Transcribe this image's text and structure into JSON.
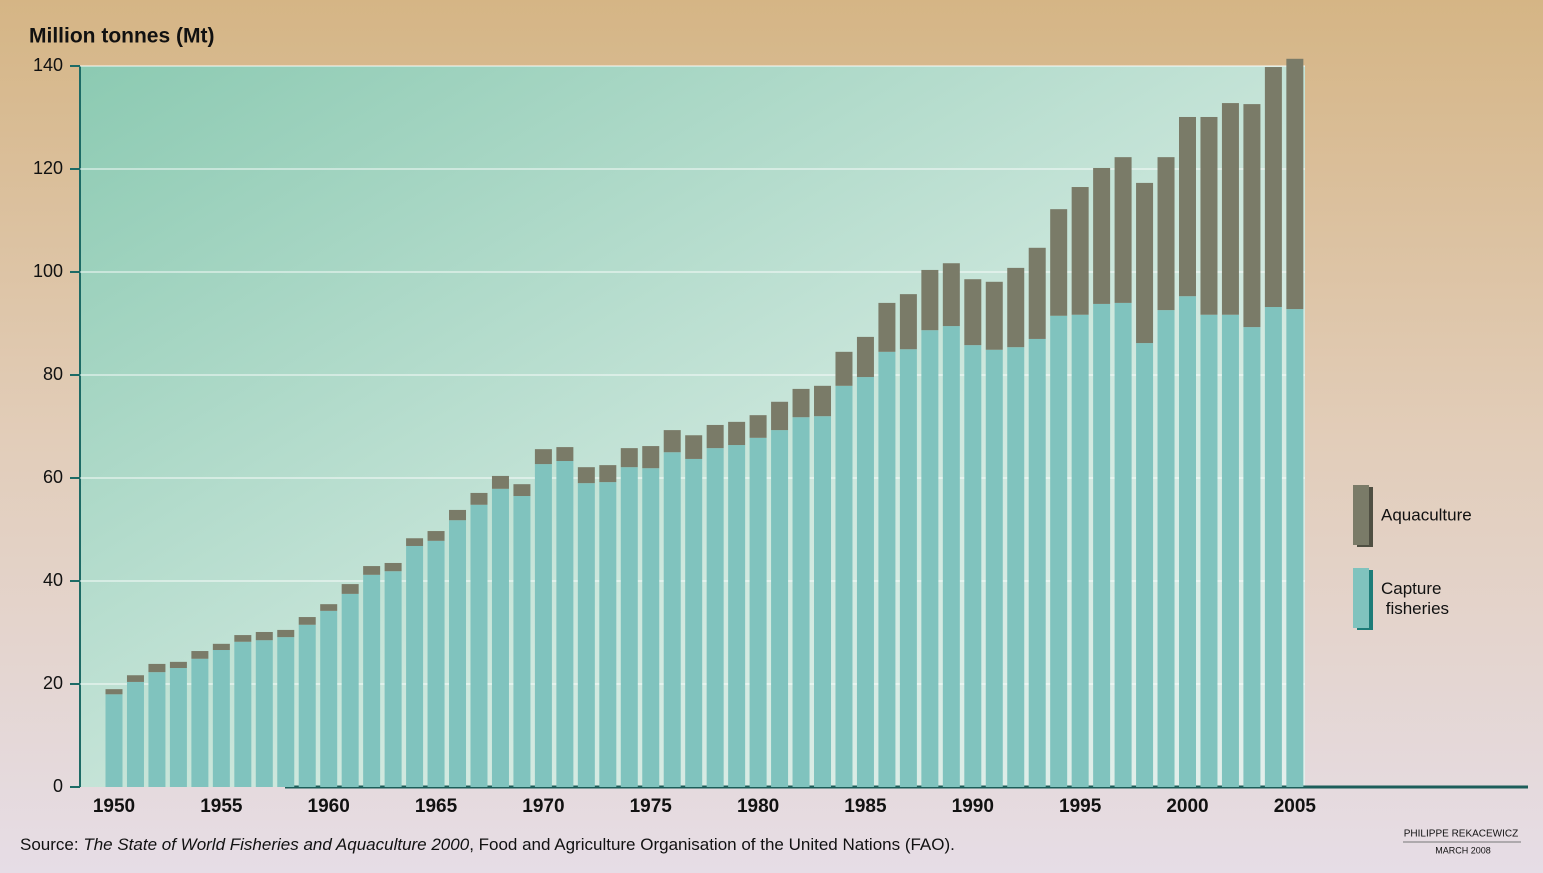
{
  "chart_data": {
    "type": "bar",
    "stacked": true,
    "y_label": "Million tonnes (Mt)",
    "categories": [
      "1950",
      null,
      null,
      null,
      null,
      "1955",
      null,
      null,
      null,
      null,
      "1960",
      null,
      null,
      null,
      null,
      "1965",
      null,
      null,
      null,
      null,
      "1970",
      null,
      null,
      null,
      null,
      "1975",
      null,
      null,
      null,
      null,
      "1980",
      null,
      null,
      null,
      null,
      "1985",
      null,
      null,
      null,
      null,
      "1990",
      null,
      null,
      null,
      null,
      "1995",
      null,
      null,
      null,
      null,
      "2000",
      null,
      null,
      null,
      null,
      "2005"
    ],
    "series": [
      {
        "name": "Capture fisheries",
        "color": "#80c3be",
        "values": [
          18.0,
          20.4,
          22.3,
          23.1,
          24.9,
          26.6,
          28.2,
          28.5,
          29.1,
          31.5,
          34.2,
          37.5,
          41.2,
          41.9,
          46.8,
          47.8,
          51.8,
          54.8,
          57.9,
          56.5,
          62.7,
          63.3,
          59.0,
          59.2,
          62.1,
          61.9,
          65.0,
          63.7,
          65.8,
          66.4,
          67.8,
          69.3,
          71.8,
          72.0,
          77.9,
          79.6,
          84.5,
          85.0,
          88.7,
          89.5,
          85.8,
          84.9,
          85.4,
          87.0,
          91.5,
          91.7,
          93.8,
          94.0,
          86.2,
          92.6,
          95.3,
          91.7,
          91.7,
          89.3,
          93.2,
          92.8
        ]
      },
      {
        "name": "Aquaculture",
        "color": "#7a7b68",
        "values": [
          1.0,
          1.3,
          1.6,
          1.2,
          1.5,
          1.2,
          1.3,
          1.6,
          1.4,
          1.5,
          1.3,
          1.9,
          1.7,
          1.6,
          1.5,
          1.9,
          2.0,
          2.3,
          2.5,
          2.3,
          2.9,
          2.7,
          3.1,
          3.3,
          3.7,
          4.3,
          4.3,
          4.6,
          4.5,
          4.5,
          4.4,
          5.5,
          5.5,
          5.9,
          6.6,
          7.8,
          9.5,
          10.7,
          11.7,
          12.2,
          12.8,
          13.2,
          15.4,
          17.7,
          20.7,
          24.8,
          26.4,
          28.3,
          31.1,
          29.7,
          34.8,
          38.4,
          41.1,
          43.3,
          46.6,
          48.6
        ]
      }
    ],
    "ylim": [
      0,
      140
    ],
    "yticks": [
      0,
      20,
      40,
      60,
      80,
      100,
      120,
      140
    ],
    "grid": true,
    "source": {
      "prefix": "Source: ",
      "title": "The State of World Fisheries and Aquaculture 2000",
      "suffix": ", Food and Agriculture Organisation of the United Nations (FAO)."
    },
    "credit": {
      "author": "PHILIPPE REKACEWICZ",
      "date": "MARCH 2008"
    }
  }
}
